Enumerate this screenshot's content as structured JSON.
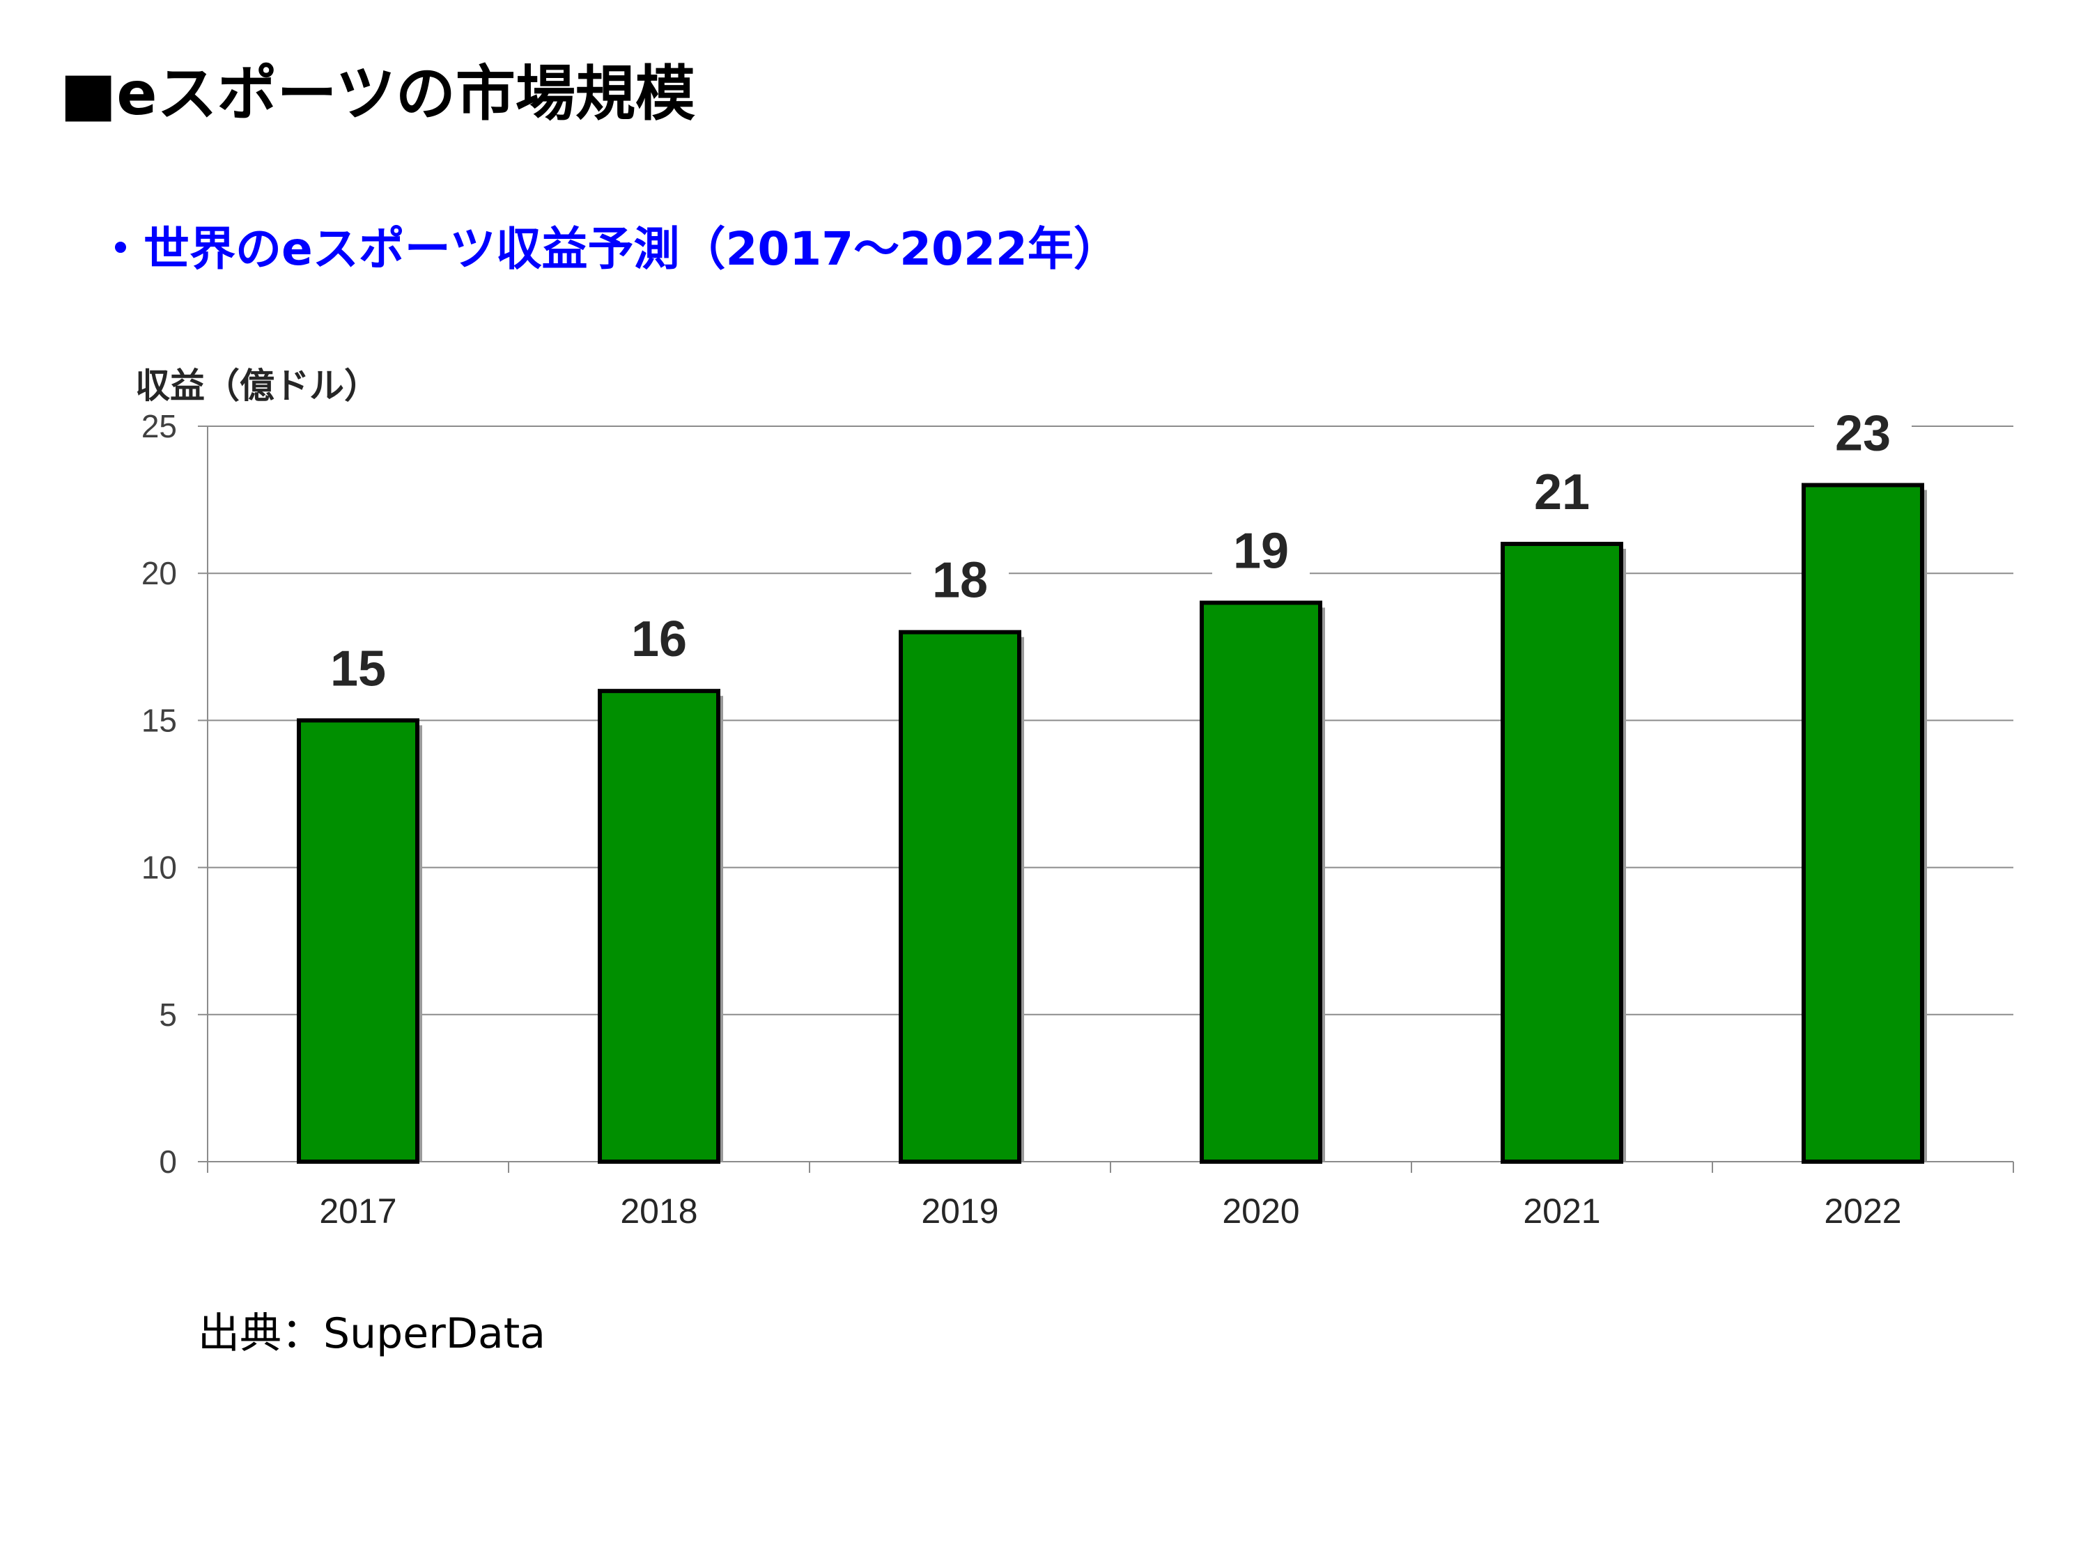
{
  "slide": {
    "title": "■eスポーツの市場規模",
    "source": "出典：SuperData"
  },
  "chart_data": {
    "type": "bar",
    "title": "・世界のeスポーツ収益予測（2017～2022年）",
    "ylabel": "収益（億ドル）",
    "xlabel": "",
    "categories": [
      "2017",
      "2018",
      "2019",
      "2020",
      "2021",
      "2022"
    ],
    "values": [
      15,
      16,
      18,
      19,
      21,
      23
    ],
    "ylim": [
      0,
      25
    ],
    "yticks": [
      0,
      5,
      10,
      15,
      20,
      25
    ],
    "grid": true,
    "bar_color": "#008f00",
    "data_labels": true
  }
}
